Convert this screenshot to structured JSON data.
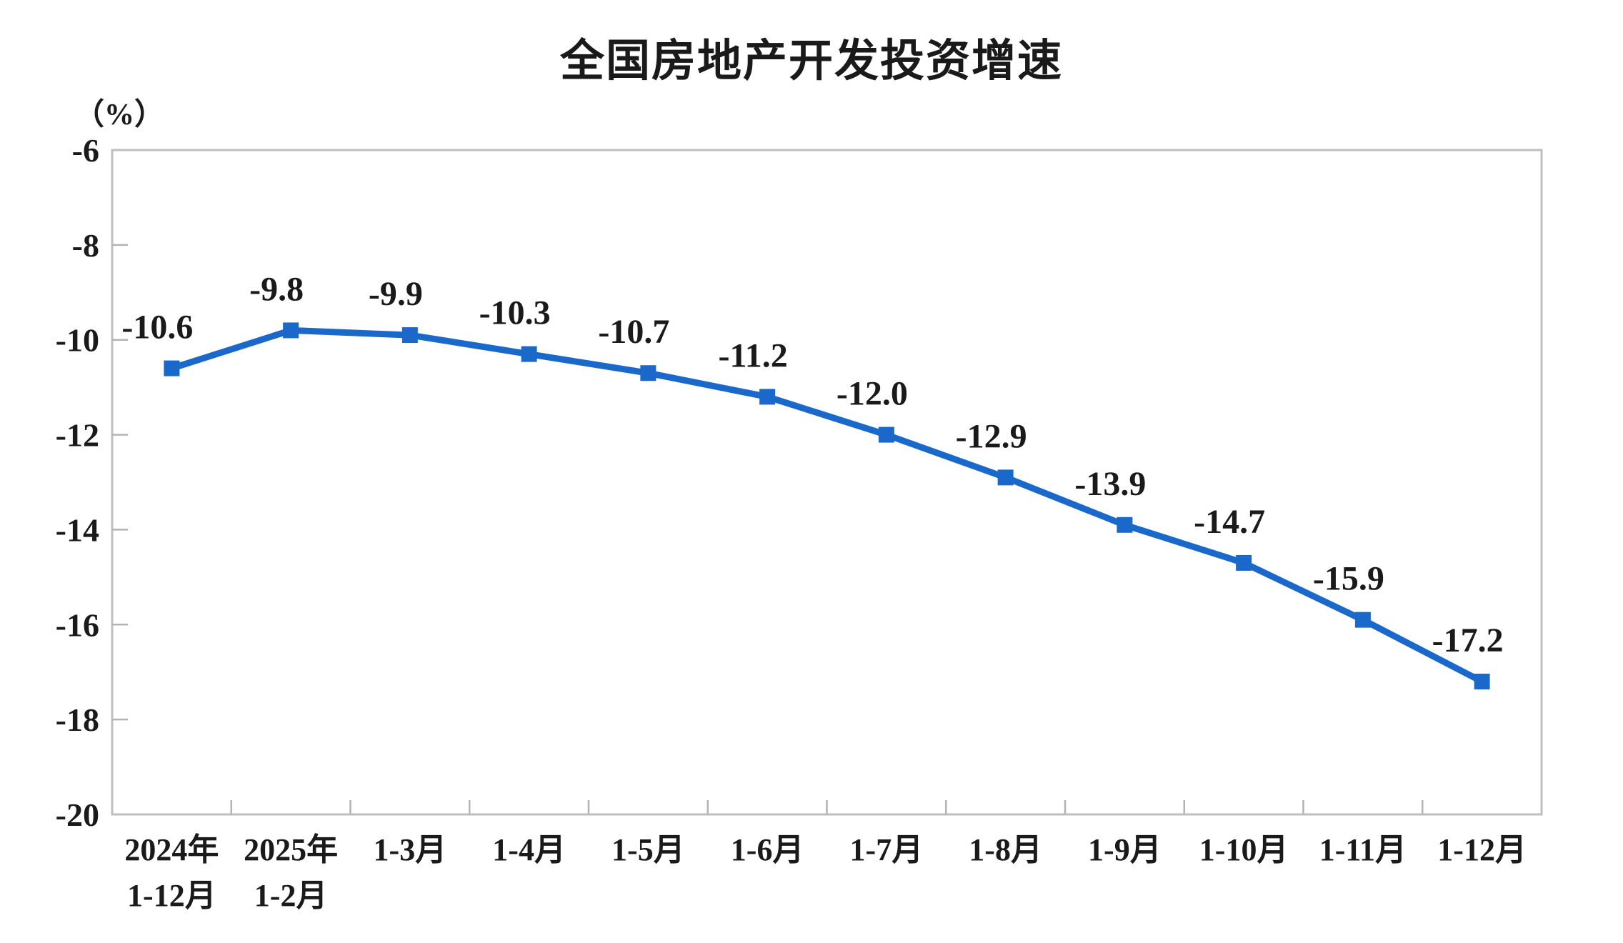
{
  "chart_data": {
    "type": "line",
    "title": "全国房地产开发投资增速",
    "unit_label": "（%）",
    "categories": [
      [
        "2024年",
        "1-12月"
      ],
      [
        "2025年",
        "1-2月"
      ],
      [
        "1-3月"
      ],
      [
        "1-4月"
      ],
      [
        "1-5月"
      ],
      [
        "1-6月"
      ],
      [
        "1-7月"
      ],
      [
        "1-8月"
      ],
      [
        "1-9月"
      ],
      [
        "1-10月"
      ],
      [
        "1-11月"
      ],
      [
        "1-12月"
      ]
    ],
    "values": [
      -10.6,
      -9.8,
      -9.9,
      -10.3,
      -10.7,
      -11.2,
      -12.0,
      -12.9,
      -13.9,
      -14.7,
      -15.9,
      -17.2
    ],
    "data_labels": [
      "-10.6",
      "-9.8",
      "-9.9",
      "-10.3",
      "-10.7",
      "-11.2",
      "-12.0",
      "-12.9",
      "-13.9",
      "-14.7",
      "-15.9",
      "-17.2"
    ],
    "ylim": [
      -20,
      -6
    ],
    "yticks": [
      -6,
      -8,
      -10,
      -12,
      -14,
      -16,
      -18,
      -20
    ],
    "ytick_labels": [
      "-6",
      "-8",
      "-10",
      "-12",
      "-14",
      "-16",
      "-18",
      "-20"
    ],
    "grid": false,
    "legend": "none",
    "marker": "square",
    "colors": {
      "line": "#1B68CB",
      "marker": "#1B68CB",
      "border": "#BFBFBF",
      "tick": "#B3B3B3",
      "text": "#1A1A1A"
    }
  }
}
